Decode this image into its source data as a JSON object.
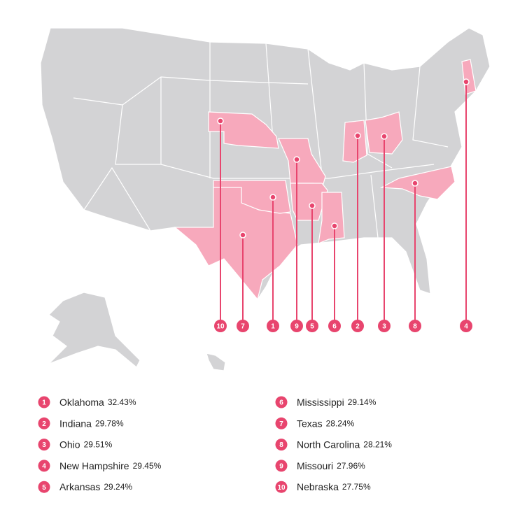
{
  "items": [
    {
      "rank": "1",
      "state": "Oklahoma",
      "value": "32.43%"
    },
    {
      "rank": "2",
      "state": "Indiana",
      "value": "29.78%"
    },
    {
      "rank": "3",
      "state": "Ohio",
      "value": "29.51%"
    },
    {
      "rank": "4",
      "state": "New Hampshire",
      "value": "29.45%"
    },
    {
      "rank": "5",
      "state": "Arkansas",
      "value": "29.24%"
    },
    {
      "rank": "6",
      "state": "Mississippi",
      "value": "29.14%"
    },
    {
      "rank": "7",
      "state": "Texas",
      "value": "28.24%"
    },
    {
      "rank": "8",
      "state": "North Carolina",
      "value": "28.21%"
    },
    {
      "rank": "9",
      "state": "Missouri",
      "value": "27.96%"
    },
    {
      "rank": "10",
      "state": "Nebraska",
      "value": "27.75%"
    }
  ]
}
